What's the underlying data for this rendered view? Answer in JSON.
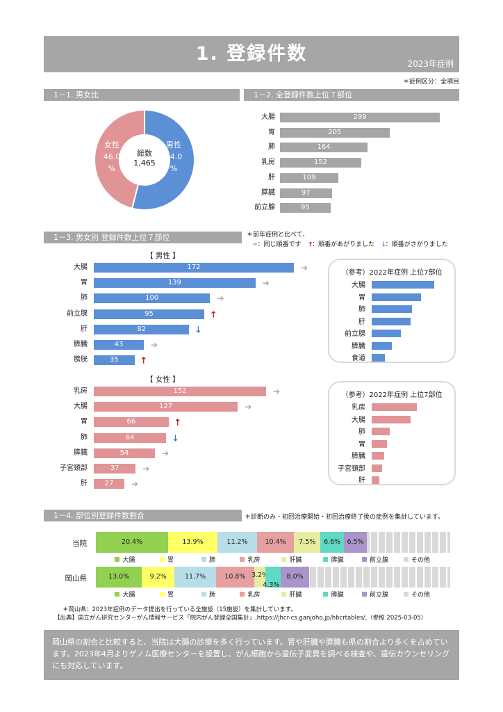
{
  "header": {
    "title": "1. 登録件数",
    "year": "2023年症例",
    "note": "＊症例区分：全項目"
  },
  "s1": {
    "title": "1－1. 男女比",
    "male_label": "男性",
    "male_pct": "54.0",
    "female_label": "女性",
    "female_pct": "46.0",
    "pct_unit": "%",
    "total_label": "総数",
    "total": "1,465",
    "male_color": "#5b8fd6",
    "female_color": "#e09496",
    "male_share": 0.54
  },
  "s2": {
    "title": "1－2. 全登録件数上位７部位",
    "categories": [
      "大腸",
      "胃",
      "肺",
      "乳房",
      "肝",
      "膵臓",
      "前立腺"
    ],
    "values": [
      299,
      205,
      164,
      152,
      109,
      97,
      95
    ],
    "value_labels": [
      "299",
      "205",
      "164",
      "152",
      "109",
      "97",
      "95"
    ]
  },
  "s3": {
    "title": "1－3. 男女別 登録件数上位７部位",
    "note1": "＊前年症例と比べて、",
    "note_same": "：同じ順番です",
    "note_up": "：順番があがりました",
    "note_down": "：順番がさがりました",
    "legend_arrows": {
      "same": "➔",
      "up": "🡑",
      "down": "🡓"
    },
    "male": {
      "heading": "【 男性 】",
      "categories": [
        "大腸",
        "胃",
        "肺",
        "前立腺",
        "肝",
        "膵臓",
        "膀胱"
      ],
      "values": [
        172,
        139,
        100,
        95,
        82,
        43,
        35
      ],
      "value_labels": [
        "172",
        "139",
        "100",
        "95",
        "82",
        "43",
        "35"
      ],
      "trend": [
        "same",
        "same",
        "same",
        "up",
        "down",
        "same",
        "up"
      ]
    },
    "female": {
      "heading": "【 女性 】",
      "categories": [
        "乳房",
        "大腸",
        "胃",
        "肺",
        "膵臓",
        "子宮頸部",
        "肝"
      ],
      "values": [
        152,
        127,
        66,
        64,
        54,
        37,
        27
      ],
      "value_labels": [
        "152",
        "127",
        "66",
        "64",
        "54",
        "37",
        "27"
      ],
      "trend": [
        "same",
        "same",
        "up",
        "down",
        "same",
        "same",
        "same"
      ]
    },
    "ref_male": {
      "title": "（参考）2022年症例 上位7部位",
      "categories": [
        "大腸",
        "胃",
        "肺",
        "肝",
        "前立腺",
        "膵臓",
        "食道"
      ],
      "values": [
        170,
        135,
        110,
        105,
        80,
        55,
        35
      ]
    },
    "ref_female": {
      "title": "（参考）2022年症例 上位7部位",
      "categories": [
        "乳房",
        "大腸",
        "肺",
        "胃",
        "膵臓",
        "子宮頸部",
        "肝"
      ],
      "values": [
        150,
        130,
        60,
        50,
        42,
        35,
        25
      ]
    }
  },
  "s4": {
    "title": "1－4. 部位別登録件数割合",
    "note": "＊診断のみ・初回治療開始・初回治療終了後の症例を集計しています。",
    "rows": [
      {
        "name": "当院",
        "segments": [
          {
            "label": "20.4%",
            "value": 20.4
          },
          {
            "label": "13.9%",
            "value": 13.9
          },
          {
            "label": "11.2%",
            "value": 11.2
          },
          {
            "label": "10.4%",
            "value": 10.4
          },
          {
            "label": "7.5%",
            "value": 7.5
          },
          {
            "label": "6.6%",
            "value": 6.6
          },
          {
            "label": "6.5%",
            "value": 6.5
          }
        ]
      },
      {
        "name": "岡山県",
        "segments": [
          {
            "label": "13.0%",
            "value": 13.0
          },
          {
            "label": "9.2%",
            "value": 9.2
          },
          {
            "label": "11.7%",
            "value": 11.7
          },
          {
            "label": "10.8%",
            "value": 10.8
          },
          {
            "label": "3.2%",
            "value": 3.2
          },
          {
            "label": "4.3%",
            "value": 4.3
          },
          {
            "label": "8.0%",
            "value": 8.0
          }
        ]
      }
    ],
    "legend": [
      "大腸",
      "胃",
      "肺",
      "乳房",
      "肝臓",
      "膵臓",
      "前立腺",
      "その他"
    ],
    "colors": [
      "#92d050",
      "#ffff66",
      "#b7dde8",
      "#e6a0a0",
      "#e6eda0",
      "#5fd9c3",
      "#a995c9",
      "#d9d9d9"
    ],
    "footnote1": "＊岡山県：2023年症例のデータ提出を行っている全施設（15施設）を集計しています。",
    "footnote2": "【出典】国立がん研究センターがん情報サービス「院内がん登録全国集計」,https://jhcr-cs.ganjoho.jp/hbcrtables/,（参照 2025-03-05）"
  },
  "footer": {
    "text": "岡山県の割合と比較すると、当院は大腸の診療を多く行っています。胃や肝臓や膵臓も県の割合より多くを占めています。2023年4月よりゲノム医療センターを設置し、がん細胞から遺伝子変異を調べる検査や、遺伝カウンセリングにも対応しています。"
  }
}
